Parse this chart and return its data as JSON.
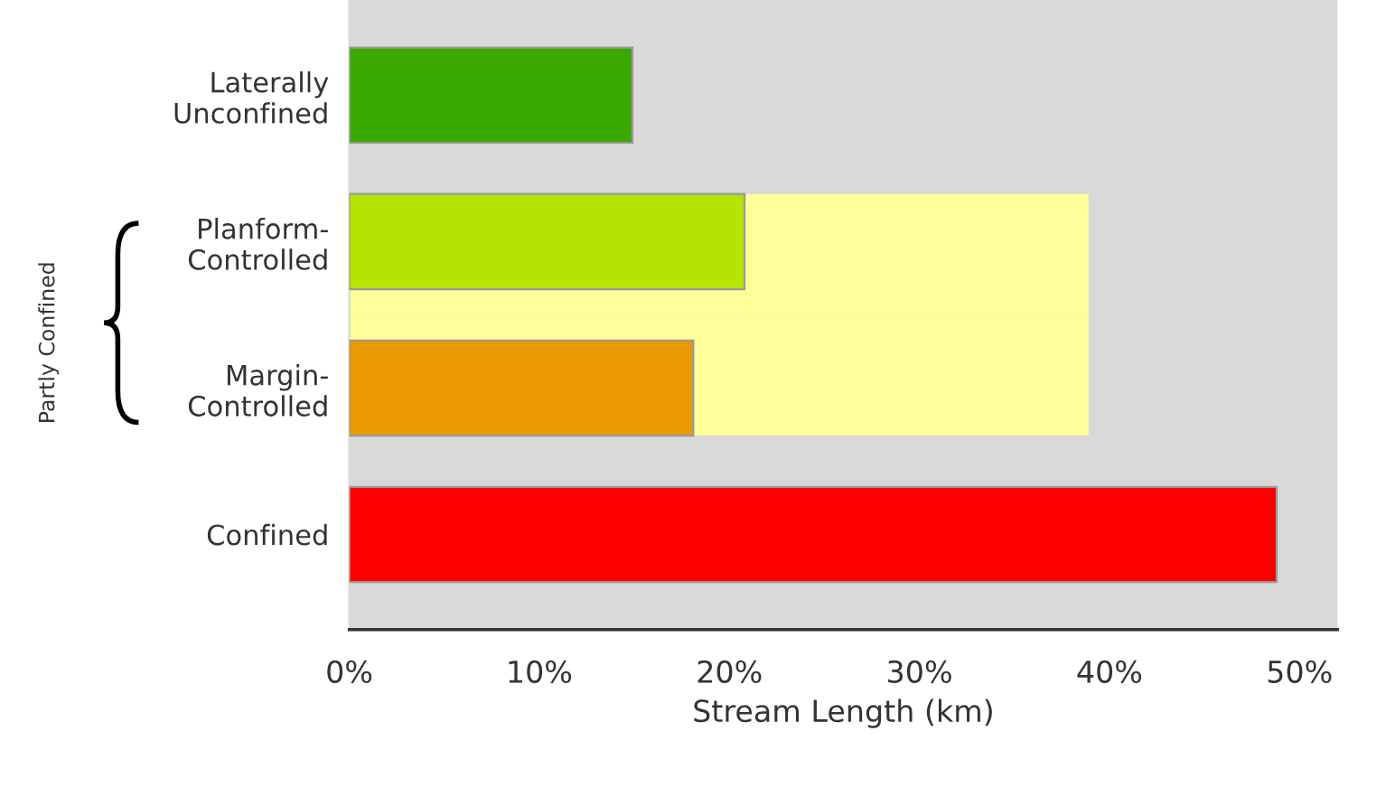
{
  "chart_data": {
    "type": "bar",
    "orientation": "horizontal",
    "xlabel": "Stream Length (km)",
    "categories": [
      "Laterally\nUnconfined",
      "Planform-\nControlled",
      "Margin-\nControlled",
      "Confined"
    ],
    "series": [
      {
        "colors": [
          "#3aaa00",
          "#b4e400",
          "#e89a00",
          "#ff0000"
        ],
        "values": [
          14.9,
          20.8,
          18.1,
          48.8
        ]
      },
      {
        "color": "#ffff99",
        "values": [
          null,
          38.9,
          38.9,
          null
        ]
      }
    ],
    "xlim": [
      0,
      52
    ],
    "xticks": [
      {
        "value": 0,
        "label": "0%"
      },
      {
        "value": 10,
        "label": "10%"
      },
      {
        "value": 20,
        "label": "20%"
      },
      {
        "value": 30,
        "label": "30%"
      },
      {
        "value": 40,
        "label": "40%"
      },
      {
        "value": 50,
        "label": "50%"
      }
    ],
    "annotations": [
      "Partly Confined"
    ],
    "grid": false
  }
}
